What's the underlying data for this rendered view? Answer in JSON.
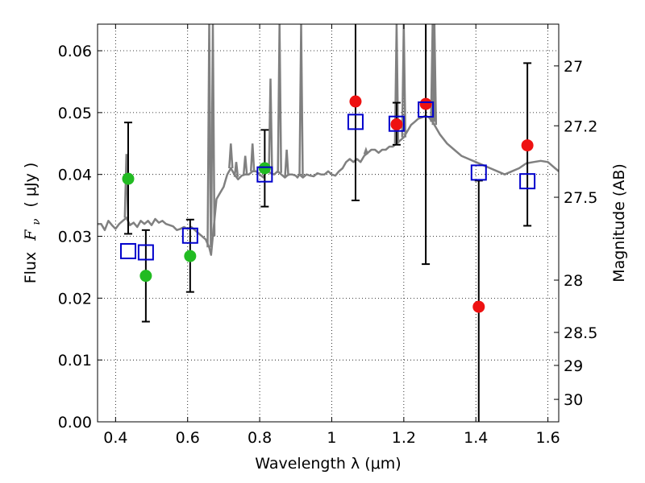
{
  "chart_data": {
    "type": "scatter",
    "xlabel": "Wavelength  λ (μm)",
    "ylabel_text": "Flux",
    "ylabel_symbol": "F",
    "ylabel_symbol_sub": "ν",
    "ylabel_unit": "( μJy )",
    "y2label": "Magnitude (AB)",
    "xlim": [
      0.35,
      1.63
    ],
    "ylim": [
      0.0,
      0.0643
    ],
    "grid": true,
    "x_ticks": [
      0.4,
      0.6,
      0.8,
      1.0,
      1.2,
      1.4,
      1.6
    ],
    "x_tick_labels": [
      "0.4",
      "0.6",
      "0.8",
      "1",
      "1.2",
      "1.4",
      "1.6"
    ],
    "y_ticks": [
      0.0,
      0.01,
      0.02,
      0.03,
      0.04,
      0.05,
      0.06
    ],
    "y_tick_labels": [
      "0.00",
      "0.01",
      "0.02",
      "0.03",
      "0.04",
      "0.05",
      "0.06"
    ],
    "y2_ticks": [
      27,
      27.2,
      27.5,
      28,
      28.5,
      29,
      30
    ],
    "y2_tick_labels": [
      "27",
      "27.2",
      "27.5",
      "28",
      "28.5",
      "29",
      "30"
    ],
    "series": [
      {
        "kind": "line",
        "color": "#808080",
        "x": [
          0.35,
          0.36,
          0.37,
          0.38,
          0.39,
          0.4,
          0.41,
          0.42,
          0.43,
          0.44,
          0.45,
          0.46,
          0.47,
          0.48,
          0.49,
          0.5,
          0.51,
          0.52,
          0.53,
          0.54,
          0.55,
          0.56,
          0.57,
          0.58,
          0.59,
          0.6,
          0.61,
          0.62,
          0.63,
          0.64,
          0.65,
          0.66,
          0.665,
          0.67,
          0.68,
          0.69,
          0.7,
          0.705,
          0.71,
          0.72,
          0.73,
          0.74,
          0.745,
          0.75,
          0.76,
          0.77,
          0.78,
          0.79,
          0.8,
          0.81,
          0.82,
          0.83,
          0.84,
          0.85,
          0.86,
          0.87,
          0.88,
          0.89,
          0.9,
          0.905,
          0.91,
          0.92,
          0.93,
          0.94,
          0.95,
          0.96,
          0.97,
          0.98,
          0.99,
          1.0,
          1.01,
          1.02,
          1.03,
          1.04,
          1.05,
          1.06,
          1.07,
          1.08,
          1.09,
          1.1,
          1.11,
          1.12,
          1.13,
          1.14,
          1.15,
          1.16,
          1.17,
          1.18,
          1.19,
          1.2,
          1.21,
          1.22,
          1.23,
          1.24,
          1.25,
          1.26,
          1.27,
          1.28,
          1.29,
          1.3,
          1.32,
          1.34,
          1.36,
          1.38,
          1.4,
          1.42,
          1.44,
          1.46,
          1.48,
          1.5,
          1.52,
          1.54,
          1.56,
          1.58,
          1.6,
          1.62,
          1.63
        ],
        "y": [
          0.032,
          0.032,
          0.031,
          0.0325,
          0.0318,
          0.0312,
          0.032,
          0.0325,
          0.033,
          0.0318,
          0.0322,
          0.0315,
          0.0325,
          0.032,
          0.0325,
          0.0318,
          0.0328,
          0.0322,
          0.0325,
          0.032,
          0.0318,
          0.0316,
          0.031,
          0.0312,
          0.0315,
          0.0312,
          0.0315,
          0.031,
          0.0305,
          0.03,
          0.0295,
          0.0282,
          0.027,
          0.03,
          0.036,
          0.037,
          0.038,
          0.039,
          0.04,
          0.041,
          0.04,
          0.0392,
          0.0395,
          0.0398,
          0.04,
          0.04,
          0.0405,
          0.0405,
          0.04,
          0.0395,
          0.041,
          0.0402,
          0.04,
          0.0405,
          0.04,
          0.0395,
          0.04,
          0.04,
          0.0398,
          0.0395,
          0.04,
          0.0395,
          0.04,
          0.0398,
          0.0397,
          0.0402,
          0.04,
          0.04,
          0.0405,
          0.04,
          0.0398,
          0.0405,
          0.041,
          0.042,
          0.0425,
          0.042,
          0.0425,
          0.042,
          0.043,
          0.0435,
          0.044,
          0.044,
          0.0435,
          0.044,
          0.044,
          0.0445,
          0.0445,
          0.045,
          0.0455,
          0.046,
          0.047,
          0.048,
          0.0485,
          0.049,
          0.0492,
          0.0495,
          0.0492,
          0.0485,
          0.0475,
          0.0465,
          0.045,
          0.044,
          0.043,
          0.0425,
          0.042,
          0.0415,
          0.041,
          0.0405,
          0.04,
          0.0405,
          0.041,
          0.0418,
          0.042,
          0.0422,
          0.042,
          0.041,
          0.0405
        ],
        "spikes": [
          {
            "x": 0.43,
            "top": 0.0433
          },
          {
            "x": 0.66,
            "top": 0.0643
          },
          {
            "x": 0.67,
            "top": 0.0643
          },
          {
            "x": 0.72,
            "top": 0.045
          },
          {
            "x": 0.735,
            "top": 0.042
          },
          {
            "x": 0.76,
            "top": 0.043
          },
          {
            "x": 0.78,
            "top": 0.045
          },
          {
            "x": 0.83,
            "top": 0.0555
          },
          {
            "x": 0.855,
            "top": 0.0643
          },
          {
            "x": 0.875,
            "top": 0.044
          },
          {
            "x": 0.915,
            "top": 0.0643
          },
          {
            "x": 1.095,
            "top": 0.044
          },
          {
            "x": 1.18,
            "top": 0.0643
          },
          {
            "x": 1.2,
            "top": 0.0643
          },
          {
            "x": 1.28,
            "top": 0.0643
          },
          {
            "x": 1.285,
            "top": 0.0643
          }
        ]
      },
      {
        "kind": "points",
        "marker": "circle",
        "color": "#22bb22",
        "points": [
          {
            "x": 0.435,
            "y": 0.0393
          },
          {
            "x": 0.484,
            "y": 0.0236
          },
          {
            "x": 0.607,
            "y": 0.0268
          },
          {
            "x": 0.814,
            "y": 0.041
          }
        ]
      },
      {
        "kind": "points",
        "marker": "circle",
        "color": "#ee1111",
        "points": [
          {
            "x": 1.066,
            "y": 0.0518
          },
          {
            "x": 1.18,
            "y": 0.0481
          },
          {
            "x": 1.261,
            "y": 0.0514
          },
          {
            "x": 1.408,
            "y": 0.0186
          },
          {
            "x": 1.543,
            "y": 0.0447
          }
        ]
      },
      {
        "kind": "points",
        "marker": "open-square",
        "color": "#0000cc",
        "points": [
          {
            "x": 0.435,
            "y": 0.0276
          },
          {
            "x": 0.484,
            "y": 0.0274
          },
          {
            "x": 0.607,
            "y": 0.0301
          },
          {
            "x": 0.814,
            "y": 0.04
          },
          {
            "x": 1.066,
            "y": 0.0485
          },
          {
            "x": 1.18,
            "y": 0.0482
          },
          {
            "x": 1.261,
            "y": 0.0505
          },
          {
            "x": 1.408,
            "y": 0.0403
          },
          {
            "x": 1.543,
            "y": 0.0389
          }
        ]
      },
      {
        "kind": "errorbars",
        "color": "#000000",
        "bars": [
          {
            "x": 0.435,
            "low": 0.0304,
            "high": 0.0484
          },
          {
            "x": 0.484,
            "low": 0.0162,
            "high": 0.031
          },
          {
            "x": 0.607,
            "low": 0.021,
            "high": 0.0327
          },
          {
            "x": 0.814,
            "low": 0.0348,
            "high": 0.0472
          },
          {
            "x": 1.066,
            "low": 0.0358,
            "high": 0.0643
          },
          {
            "x": 1.18,
            "low": 0.0448,
            "high": 0.0516
          },
          {
            "x": 1.261,
            "low": 0.0255,
            "high": 0.0643
          },
          {
            "x": 1.408,
            "low": 0.0,
            "high": 0.039
          },
          {
            "x": 1.543,
            "low": 0.0317,
            "high": 0.058
          }
        ]
      }
    ]
  }
}
